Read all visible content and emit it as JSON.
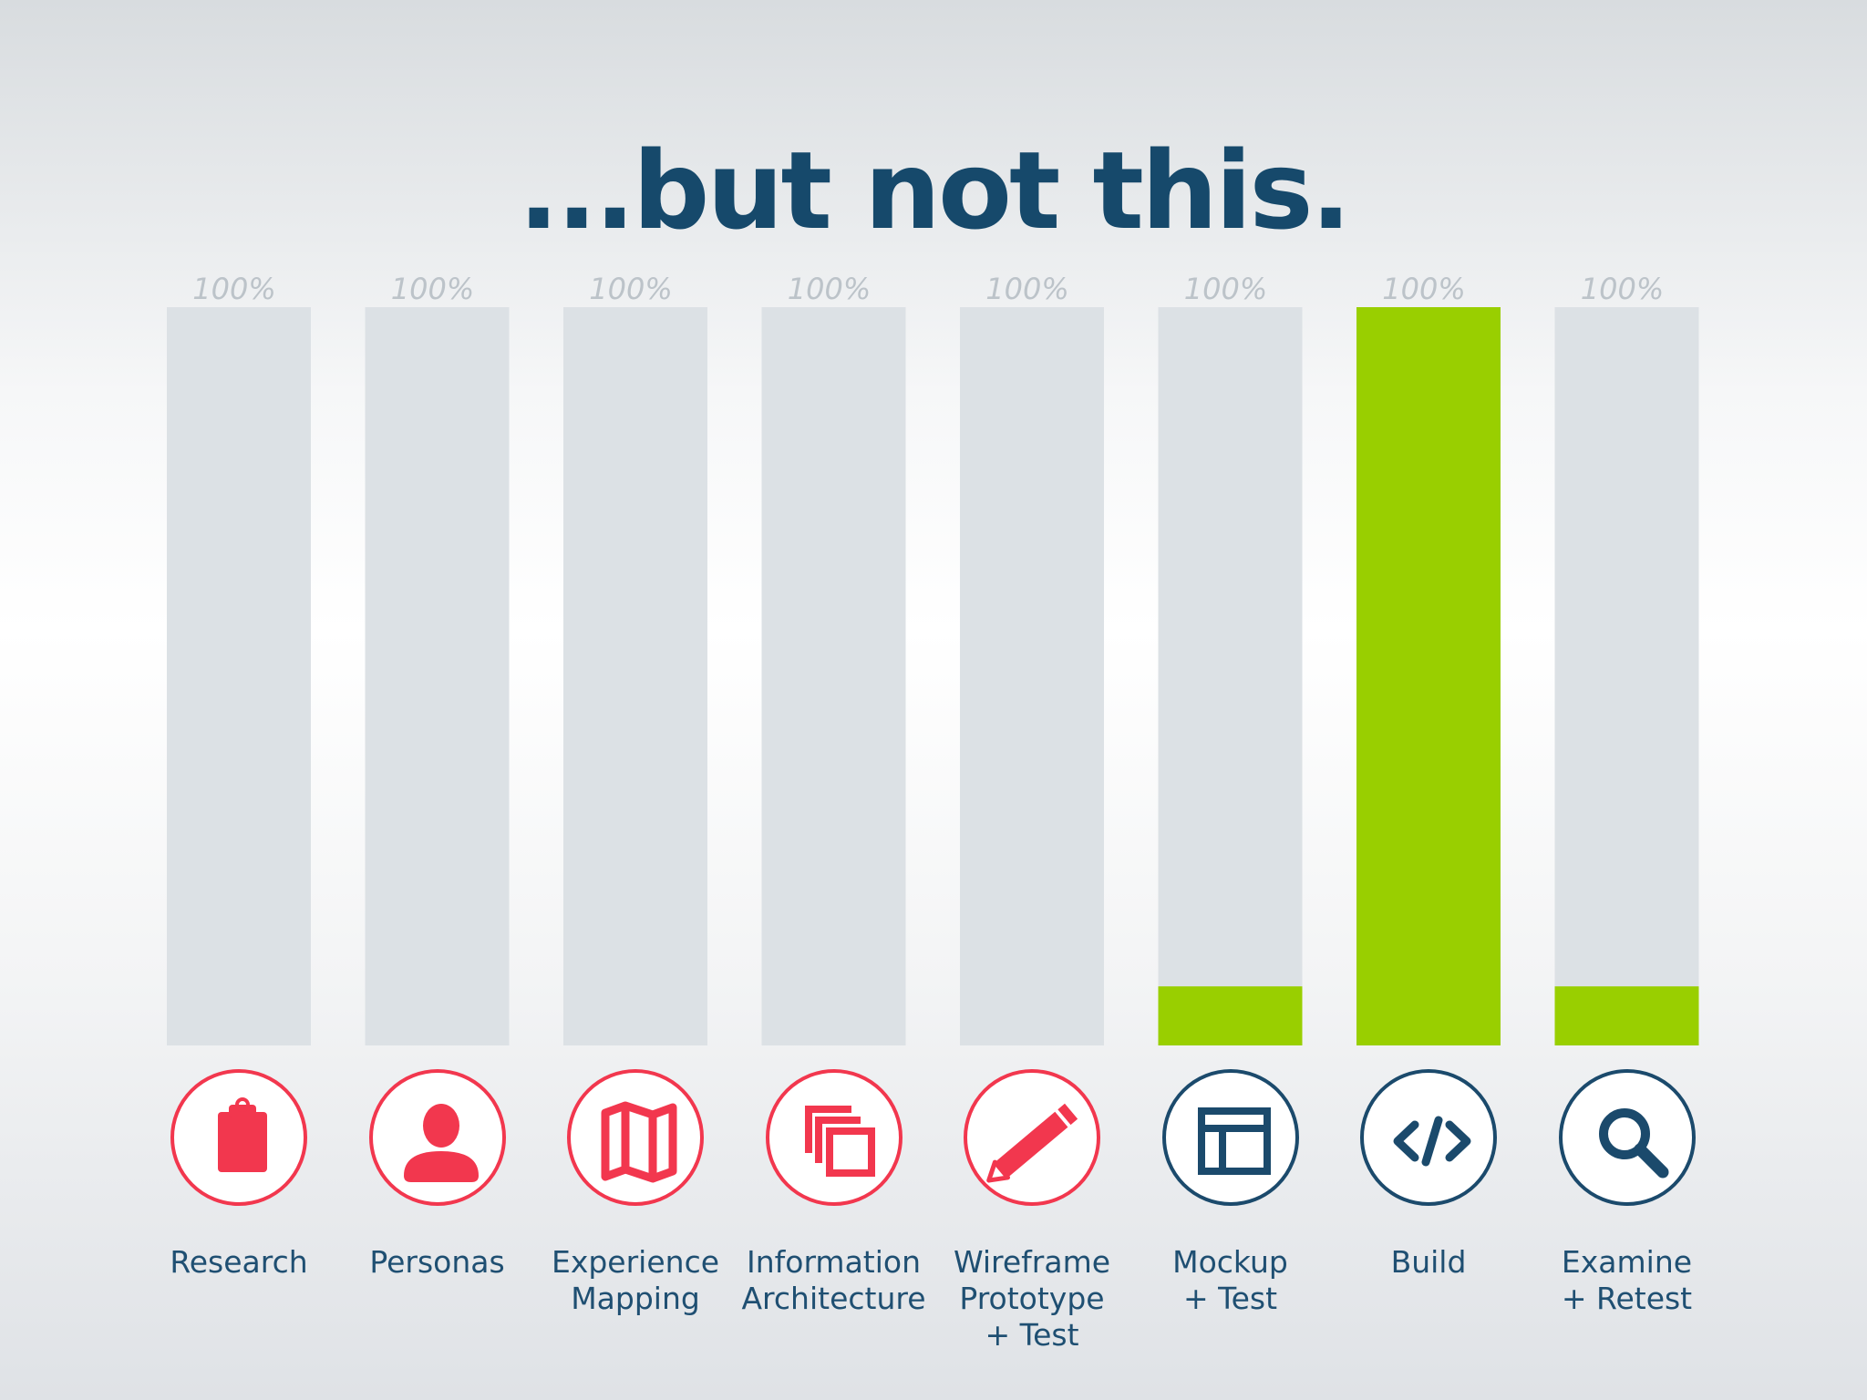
{
  "colors": {
    "accent": "#99cf00",
    "track": "#dce1e5",
    "title": "#16496b",
    "icon_red": "#f2374e",
    "icon_blue": "#1b4a6c",
    "percent_text": "#bcc3c9"
  },
  "chart_data": {
    "type": "bar",
    "title": "...but not this.",
    "categories": [
      "Research",
      "Personas",
      "Experience Mapping",
      "Information Architecture",
      "Wireframe Prototype + Test",
      "Mockup + Test",
      "Build",
      "Examine + Retest"
    ],
    "category_lines": [
      [
        "Research"
      ],
      [
        "Personas"
      ],
      [
        "Experience",
        "Mapping"
      ],
      [
        "Information",
        "Architecture"
      ],
      [
        "Wireframe",
        "Prototype",
        "+ Test"
      ],
      [
        "Mockup",
        "+ Test"
      ],
      [
        "Build"
      ],
      [
        "Examine",
        "+ Retest"
      ]
    ],
    "capacity_labels": [
      "100%",
      "100%",
      "100%",
      "100%",
      "100%",
      "100%",
      "100%",
      "100%"
    ],
    "values": [
      0,
      0,
      0,
      0,
      0,
      8,
      100,
      8
    ],
    "ylim": [
      0,
      100
    ],
    "icons": [
      "clipboard-icon",
      "person-icon",
      "map-icon",
      "layers-icon",
      "pencil-icon",
      "layout-icon",
      "code-icon",
      "magnifier-icon"
    ],
    "icon_tones": [
      "red",
      "red",
      "red",
      "red",
      "red",
      "blue",
      "blue",
      "blue"
    ],
    "xlabel": "",
    "ylabel": "",
    "grid": false,
    "legend": "none"
  }
}
